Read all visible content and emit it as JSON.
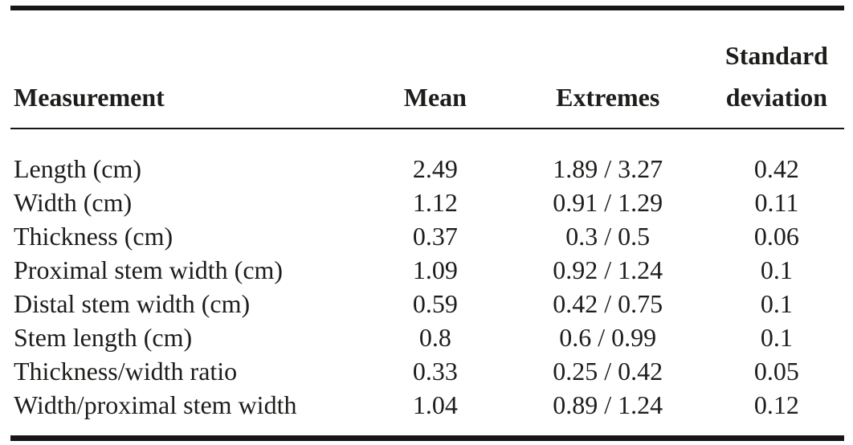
{
  "colors": {
    "text": "#1d1d1b",
    "rule": "#161616",
    "background": "#ffffff"
  },
  "table": {
    "headers": {
      "measurement": "Measurement",
      "mean": "Mean",
      "extremes": "Extremes",
      "standard_deviation": "Standard deviation"
    },
    "rows": [
      {
        "measurement": "Length (cm)",
        "mean": "2.49",
        "extremes": "1.89 / 3.27",
        "standard_deviation": "0.42"
      },
      {
        "measurement": "Width (cm)",
        "mean": "1.12",
        "extremes": "0.91 / 1.29",
        "standard_deviation": "0.11"
      },
      {
        "measurement": "Thickness (cm)",
        "mean": "0.37",
        "extremes": "0.3 / 0.5",
        "standard_deviation": "0.06"
      },
      {
        "measurement": "Proximal stem width (cm)",
        "mean": "1.09",
        "extremes": "0.92 / 1.24",
        "standard_deviation": "0.1"
      },
      {
        "measurement": "Distal stem width (cm)",
        "mean": "0.59",
        "extremes": "0.42 / 0.75",
        "standard_deviation": "0.1"
      },
      {
        "measurement": "Stem length (cm)",
        "mean": "0.8",
        "extremes": "0.6 / 0.99",
        "standard_deviation": "0.1"
      },
      {
        "measurement": "Thickness/width ratio",
        "mean": "0.33",
        "extremes": "0.25 / 0.42",
        "standard_deviation": "0.05"
      },
      {
        "measurement": "Width/proximal stem width",
        "mean": "1.04",
        "extremes": "0.89 / 1.24",
        "standard_deviation": "0.12"
      }
    ]
  }
}
